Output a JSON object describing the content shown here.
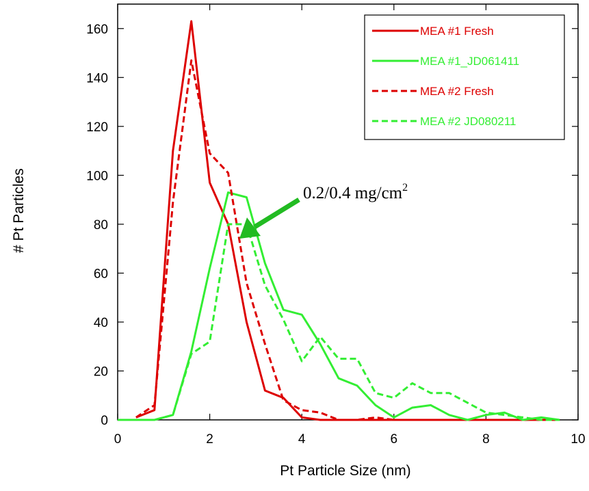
{
  "chart_data": {
    "type": "line",
    "title": "",
    "xlabel": "Pt Particle Size (nm)",
    "ylabel": "# Pt Particles",
    "xlim": [
      0,
      10
    ],
    "ylim": [
      0,
      170
    ],
    "xticks": [
      0,
      2,
      4,
      6,
      8,
      10
    ],
    "yticks": [
      0,
      20,
      40,
      60,
      80,
      100,
      120,
      140,
      160
    ],
    "grid": false,
    "legend_position": "top-right",
    "annotation": {
      "text": "0.2/0.4  mg/cm",
      "superscript": "2",
      "arrow_color": "#22bb22"
    },
    "series": [
      {
        "name": "MEA #1 Fresh",
        "color": "#dd0000",
        "dash": "solid",
        "x": [
          0.4,
          0.8,
          1.2,
          1.6,
          2.0,
          2.4,
          2.8,
          3.2,
          3.6,
          4.0,
          4.4,
          4.8,
          5.2,
          5.6,
          6.0,
          6.4,
          6.8,
          7.2,
          7.6,
          8.0,
          8.4,
          8.8,
          9.2,
          9.6
        ],
        "y": [
          1,
          4,
          110,
          163,
          97,
          80,
          40,
          12,
          9,
          1,
          0,
          0,
          0,
          0,
          0,
          0,
          0,
          0,
          0,
          0,
          0,
          0,
          0,
          0
        ]
      },
      {
        "name": "MEA #1_JD061411",
        "color": "#33ee33",
        "dash": "solid",
        "x": [
          0.0,
          0.4,
          0.8,
          1.2,
          1.6,
          2.0,
          2.4,
          2.8,
          3.2,
          3.6,
          4.0,
          4.4,
          4.8,
          5.2,
          5.6,
          6.0,
          6.4,
          6.8,
          7.2,
          7.6,
          8.0,
          8.4,
          8.8,
          9.2,
          9.6
        ],
        "y": [
          0,
          0,
          0,
          2,
          28,
          62,
          93,
          91,
          64,
          45,
          43,
          31,
          17,
          14,
          6,
          1,
          5,
          6,
          2,
          0,
          2,
          3,
          0,
          1,
          0
        ]
      },
      {
        "name": "MEA #2 Fresh",
        "color": "#dd0000",
        "dash": "dashed",
        "x": [
          0.4,
          0.8,
          1.2,
          1.6,
          2.0,
          2.4,
          2.8,
          3.2,
          3.6,
          4.0,
          4.4,
          4.8,
          5.2,
          5.6,
          6.0
        ],
        "y": [
          1,
          6,
          89,
          147,
          109,
          101,
          56,
          31,
          8,
          4,
          3,
          0,
          0,
          1,
          0
        ]
      },
      {
        "name": "MEA #2 JD080211",
        "color": "#33ee33",
        "dash": "dashed",
        "x": [
          0.0,
          0.4,
          0.8,
          1.2,
          1.6,
          2.0,
          2.4,
          2.8,
          3.2,
          3.6,
          4.0,
          4.4,
          4.8,
          5.2,
          5.6,
          6.0,
          6.4,
          6.8,
          7.2,
          7.6,
          8.0,
          8.4,
          8.8,
          9.2,
          9.6
        ],
        "y": [
          0,
          0,
          0,
          2,
          27,
          32,
          80,
          80,
          55,
          41,
          24,
          34,
          25,
          25,
          11,
          9,
          15,
          11,
          11,
          7,
          3,
          2,
          1,
          0,
          0
        ]
      }
    ]
  }
}
